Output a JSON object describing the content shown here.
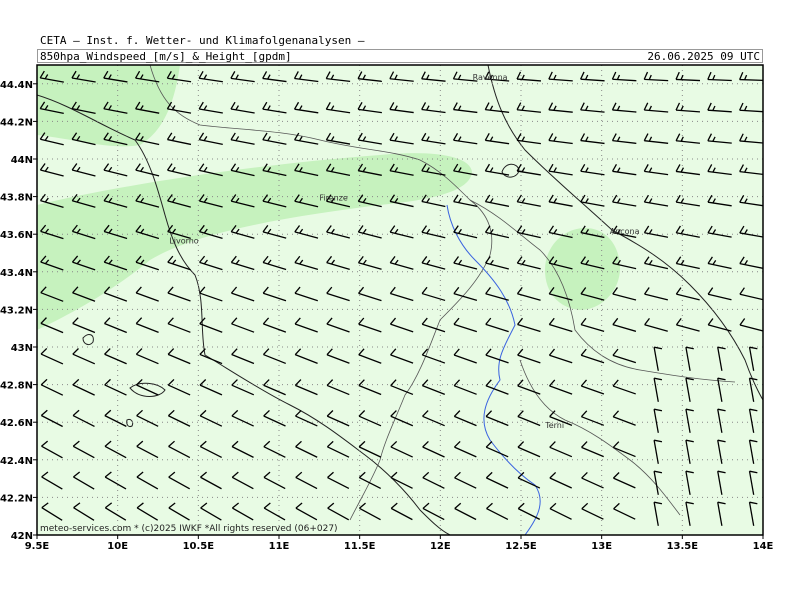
{
  "header": {
    "organization": "CETA — Inst. f. Wetter- und Klimafolgenanalysen —",
    "parameter": "850hpa_Windspeed_[m/s]_&_Height_[gpdm]",
    "valid_time": "26.06.2025 09 UTC"
  },
  "footer": "meteo-services.com * (c)2025 IWKF *All rights reserved (06+027)",
  "map_data": {
    "lon_range": [
      9.5,
      14.0
    ],
    "lat_range": [
      42.0,
      44.5
    ],
    "lon_ticks": [
      {
        "value": 9.5,
        "label": "9.5E"
      },
      {
        "value": 10.0,
        "label": "10E"
      },
      {
        "value": 10.5,
        "label": "10.5E"
      },
      {
        "value": 11.0,
        "label": "11E"
      },
      {
        "value": 11.5,
        "label": "11.5E"
      },
      {
        "value": 12.0,
        "label": "12E"
      },
      {
        "value": 12.5,
        "label": "12.5E"
      },
      {
        "value": 13.0,
        "label": "13E"
      },
      {
        "value": 13.5,
        "label": "13.5E"
      },
      {
        "value": 14.0,
        "label": "14E"
      }
    ],
    "lat_ticks": [
      {
        "value": 42.0,
        "label": "42N"
      },
      {
        "value": 42.2,
        "label": "42.2N"
      },
      {
        "value": 42.4,
        "label": "42.4N"
      },
      {
        "value": 42.6,
        "label": "42.6N"
      },
      {
        "value": 42.8,
        "label": "42.8N"
      },
      {
        "value": 43.0,
        "label": "43N"
      },
      {
        "value": 43.2,
        "label": "43.2N"
      },
      {
        "value": 43.4,
        "label": "43.4N"
      },
      {
        "value": 43.6,
        "label": "43.6N"
      },
      {
        "value": 43.8,
        "label": "43.8N"
      },
      {
        "value": 44.0,
        "label": "44N"
      },
      {
        "value": 44.2,
        "label": "44.2N"
      },
      {
        "value": 44.4,
        "label": "44.4N"
      }
    ],
    "cities": [
      {
        "name": "Ravenna",
        "lon": 12.2,
        "lat": 44.42
      },
      {
        "name": "Firenze",
        "lon": 11.25,
        "lat": 43.78
      },
      {
        "name": "Livorno",
        "lon": 10.32,
        "lat": 43.55
      },
      {
        "name": "Ancona",
        "lon": 13.05,
        "lat": 43.6
      },
      {
        "name": "Terni",
        "lon": 12.65,
        "lat": 42.57
      }
    ],
    "colors": {
      "background_fill": "#e8fbe4",
      "stronger_wind_fill": "#c6f2be",
      "grid": "#888888",
      "coastline": "#222222",
      "border": "#555555",
      "river": "#3a63e0",
      "barb": "#000000"
    },
    "wind_barbs": "wind barbs on a regular grid, mostly westerly to northwesterly flow"
  }
}
